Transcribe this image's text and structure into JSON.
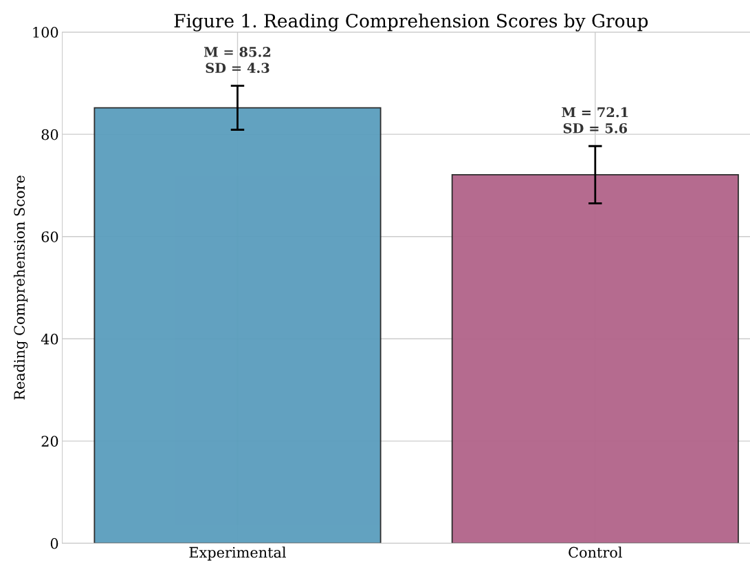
{
  "chart_data": {
    "type": "bar",
    "title": "Figure 1. Reading Comprehension Scores by Group",
    "ylabel": "Reading Comprehension Score",
    "categories": [
      "Experimental",
      "Control"
    ],
    "values": [
      85.2,
      72.1
    ],
    "errors": [
      4.3,
      5.6
    ],
    "colors": [
      "#5a9dbd",
      "#b2648a"
    ],
    "value_labels": [
      "M = 85.2\nSD = 4.3",
      "M = 72.1\nSD = 5.6"
    ],
    "ylim": [
      0,
      100
    ],
    "yticks": [
      0,
      20,
      40,
      60,
      80,
      100
    ],
    "grid": true
  }
}
